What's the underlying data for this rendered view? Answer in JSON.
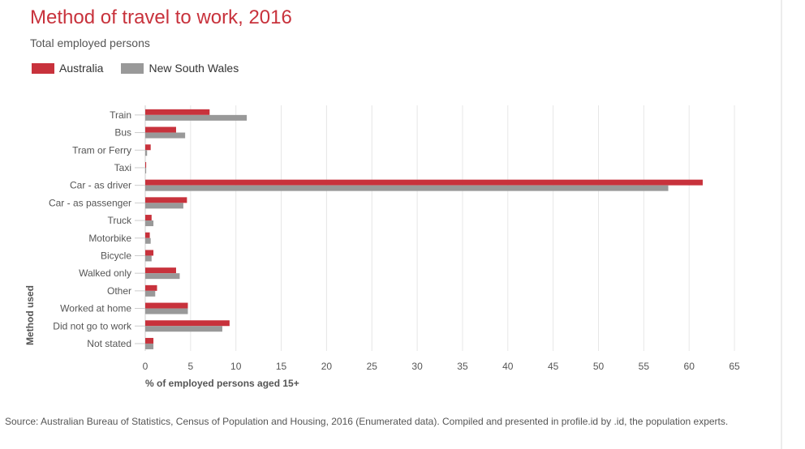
{
  "header": {
    "title": "Method of travel to work, 2016",
    "subtitle": "Total employed persons"
  },
  "footer": {
    "source": "Source: Australian Bureau of Statistics, Census of Population and Housing, 2016 (Enumerated data). Compiled and presented in profile.id by .id, the population experts."
  },
  "colors": {
    "australia": "#c8323c",
    "nsw": "#999999",
    "grid": "#e6e6e6",
    "title": "#c8323c"
  },
  "chart_data": {
    "type": "bar",
    "orientation": "horizontal",
    "title": "Method of travel to work, 2016",
    "subtitle": "Total employed persons",
    "xlabel": "% of employed persons aged 15+",
    "ylabel": "Method used",
    "xlim": [
      0,
      65
    ],
    "xticks": [
      0,
      5,
      10,
      15,
      20,
      25,
      30,
      35,
      40,
      45,
      50,
      55,
      60,
      65
    ],
    "grid": true,
    "legend_position": "top-left",
    "categories": [
      "Train",
      "Bus",
      "Tram or Ferry",
      "Taxi",
      "Car - as driver",
      "Car - as passenger",
      "Truck",
      "Motorbike",
      "Bicycle",
      "Walked only",
      "Other",
      "Worked at home",
      "Did not go to work",
      "Not stated"
    ],
    "series": [
      {
        "name": "Australia",
        "color": "#c8323c",
        "values": [
          7.1,
          3.4,
          0.6,
          0.1,
          61.5,
          4.6,
          0.7,
          0.5,
          0.9,
          3.4,
          1.3,
          4.7,
          9.3,
          0.9
        ]
      },
      {
        "name": "New South Wales",
        "color": "#999999",
        "values": [
          11.2,
          4.4,
          0.2,
          0.1,
          57.7,
          4.2,
          0.9,
          0.6,
          0.7,
          3.8,
          1.1,
          4.7,
          8.5,
          0.9
        ]
      }
    ]
  }
}
